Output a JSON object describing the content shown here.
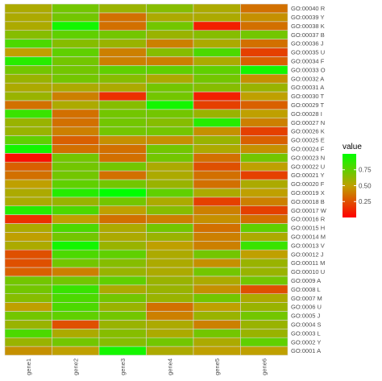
{
  "chart_data": {
    "type": "heatmap",
    "x": [
      "gene1",
      "gene2",
      "gene3",
      "gene4",
      "gene5",
      "gene6"
    ],
    "y": [
      "GO:0001 A",
      "GO:0002 Y",
      "GO:0003 L",
      "GO:0004 S",
      "GO:0005 J",
      "GO:0006 U",
      "GO:0007 M",
      "GO:0008 L",
      "GO:0009 A",
      "GO:00010 U",
      "GO:00011 M",
      "GO:00012 J",
      "GO:00013 V",
      "GO:00014 M",
      "GO:00015 H",
      "GO:00016 R",
      "GO:00017 W",
      "GO:00018 B",
      "GO:00019 X",
      "GO:00020 F",
      "GO:00021 Y",
      "GO:00022 U",
      "GO:00023 N",
      "GO:00024 F",
      "GO:00025 E",
      "GO:00026 K",
      "GO:00027 N",
      "GO:00028 I",
      "GO:00029 T",
      "GO:00030 T",
      "GO:00031 A",
      "GO:00032 A",
      "GO:00033 O",
      "GO:00034 F",
      "GO:00035 U",
      "GO:00036 J",
      "GO:00037 B",
      "GO:00038 K",
      "GO:00039 Y",
      "GO:00040 R"
    ],
    "values": [
      [
        0.45,
        0.5,
        0.95,
        0.55,
        0.5,
        0.5
      ],
      [
        0.6,
        0.7,
        0.65,
        0.7,
        0.55,
        0.75
      ],
      [
        0.8,
        0.55,
        0.65,
        0.55,
        0.7,
        0.6
      ],
      [
        0.6,
        0.25,
        0.6,
        0.55,
        0.4,
        0.6
      ],
      [
        0.7,
        0.75,
        0.7,
        0.4,
        0.6,
        0.7
      ],
      [
        0.5,
        0.8,
        0.6,
        0.35,
        0.5,
        0.6
      ],
      [
        0.65,
        0.8,
        0.7,
        0.6,
        0.7,
        0.55
      ],
      [
        0.7,
        0.85,
        0.55,
        0.6,
        0.45,
        0.25
      ],
      [
        0.7,
        0.7,
        0.75,
        0.6,
        0.55,
        0.7
      ],
      [
        0.3,
        0.4,
        0.6,
        0.55,
        0.7,
        0.6
      ],
      [
        0.25,
        0.7,
        0.65,
        0.55,
        0.45,
        0.6
      ],
      [
        0.25,
        0.8,
        0.75,
        0.55,
        0.7,
        0.5
      ],
      [
        0.55,
        0.95,
        0.6,
        0.5,
        0.4,
        0.85
      ],
      [
        0.5,
        0.7,
        0.55,
        0.6,
        0.4,
        0.55
      ],
      [
        0.55,
        0.8,
        0.55,
        0.7,
        0.35,
        0.75
      ],
      [
        0.15,
        0.5,
        0.35,
        0.4,
        0.45,
        0.35
      ],
      [
        0.9,
        0.8,
        0.5,
        0.65,
        0.4,
        0.2
      ],
      [
        0.55,
        0.6,
        0.7,
        0.55,
        0.2,
        0.4
      ],
      [
        0.55,
        0.9,
        1.0,
        0.75,
        0.55,
        0.5
      ],
      [
        0.5,
        0.75,
        0.7,
        0.6,
        0.35,
        0.55
      ],
      [
        0.35,
        0.7,
        0.35,
        0.55,
        0.35,
        0.2
      ],
      [
        0.3,
        0.7,
        0.7,
        0.55,
        0.25,
        0.5
      ],
      [
        0.05,
        0.7,
        0.35,
        0.7,
        0.35,
        0.7
      ],
      [
        0.95,
        0.35,
        0.35,
        0.7,
        0.55,
        0.45
      ],
      [
        0.75,
        0.3,
        0.45,
        0.45,
        0.6,
        0.3
      ],
      [
        0.6,
        0.4,
        0.7,
        0.7,
        0.45,
        0.2
      ],
      [
        0.6,
        0.35,
        0.7,
        0.65,
        0.9,
        0.4
      ],
      [
        0.85,
        0.35,
        0.7,
        0.7,
        0.6,
        0.5
      ],
      [
        0.35,
        0.55,
        0.65,
        0.95,
        0.2,
        0.3
      ],
      [
        0.6,
        0.4,
        0.15,
        0.7,
        0.1,
        0.5
      ],
      [
        0.55,
        0.55,
        0.55,
        0.7,
        0.65,
        0.6
      ],
      [
        0.6,
        0.7,
        0.65,
        0.55,
        0.7,
        0.45
      ],
      [
        0.7,
        0.7,
        0.75,
        0.75,
        0.75,
        0.95
      ],
      [
        0.9,
        0.7,
        0.4,
        0.4,
        0.55,
        0.3
      ],
      [
        0.5,
        0.75,
        0.4,
        0.65,
        0.8,
        0.2
      ],
      [
        0.8,
        0.65,
        0.6,
        0.4,
        0.55,
        0.35
      ],
      [
        0.65,
        0.75,
        0.7,
        0.6,
        0.65,
        0.7
      ],
      [
        0.55,
        0.95,
        0.35,
        0.7,
        0.1,
        0.35
      ],
      [
        0.55,
        0.7,
        0.35,
        0.55,
        0.55,
        0.45
      ],
      [
        0.55,
        0.7,
        0.6,
        0.65,
        0.55,
        0.35
      ]
    ],
    "legend": {
      "title": "value",
      "ticks": [
        0.25,
        0.5,
        0.75
      ],
      "tick_labels": [
        "0.25",
        "0.50",
        "0.75"
      ],
      "range": [
        0,
        1
      ],
      "placement": "right"
    },
    "colors": {
      "low": "#ff0000",
      "high": "#00ff00"
    },
    "grid": false
  }
}
